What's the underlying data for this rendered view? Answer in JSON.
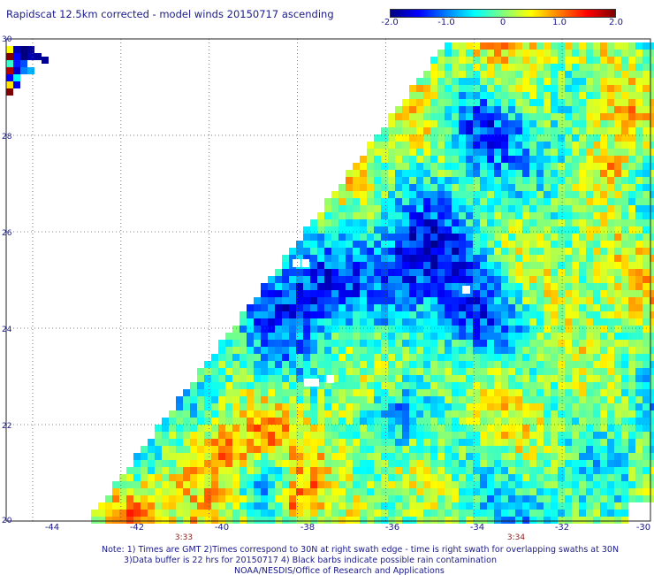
{
  "title": "Rapidscat 12.5km corrected - model winds 20150717 ascending",
  "colorbar": {
    "min": -2.0,
    "max": 2.0,
    "ticks": [
      "-2.0",
      "-1.0",
      "0",
      "1.0",
      "2.0"
    ],
    "tick_values": [
      -2.0,
      -1.0,
      0,
      1.0,
      2.0
    ],
    "colors": [
      "#00007f",
      "#0000ff",
      "#007fff",
      "#00ffff",
      "#7fff7f",
      "#ffff00",
      "#ff7f00",
      "#ff0000",
      "#7f0000"
    ]
  },
  "map": {
    "lon_range": [
      -44.6,
      -30
    ],
    "lat_range": [
      20,
      30
    ],
    "lon_ticks": [
      "-44",
      "-42",
      "-40",
      "-38",
      "-36",
      "-34",
      "-32",
      "-30"
    ],
    "lon_tick_values": [
      -44,
      -42,
      -40,
      -38,
      -36,
      -34,
      -32,
      -30
    ],
    "lat_ticks": [
      "30",
      "28",
      "26",
      "24",
      "22",
      "20"
    ],
    "lat_tick_values": [
      30,
      28,
      26,
      24,
      22,
      20
    ],
    "grid": true,
    "swath_times": [
      {
        "label": "3:33",
        "lon": -41.0
      },
      {
        "label": "3:34",
        "lon": -33.0
      }
    ]
  },
  "notes": [
    "Note: 1) Times are GMT 2)Times correspond to 30N at right swath edge - time is right swath for overlapping swaths at 30N",
    "3)Data buffer is 22 hrs for 20150717 4) Black barbs indicate possible rain contamination",
    "NOAA/NESDIS/Office of Research and Applications"
  ]
}
